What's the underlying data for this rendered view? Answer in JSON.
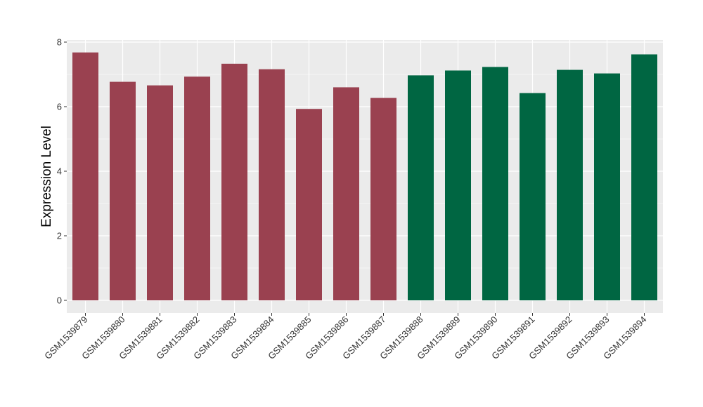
{
  "chart_data": {
    "type": "bar",
    "title": "",
    "xlabel": "",
    "ylabel": "Expression Level",
    "ylim": [
      0,
      8.2
    ],
    "yticks": [
      0,
      2,
      4,
      6,
      8
    ],
    "grid": true,
    "legend": "none",
    "colors": {
      "panel": "#ebebeb",
      "grid": "#ffffff",
      "group_a": "#9a4150",
      "group_b": "#006642"
    },
    "categories": [
      "GSM1539879",
      "GSM1539880",
      "GSM1539881",
      "GSM1539882",
      "GSM1539883",
      "GSM1539884",
      "GSM1539885",
      "GSM1539886",
      "GSM1539887",
      "GSM1539888",
      "GSM1539889",
      "GSM1539890",
      "GSM1539891",
      "GSM1539892",
      "GSM1539893",
      "GSM1539894"
    ],
    "values": [
      7.68,
      6.77,
      6.66,
      6.93,
      7.33,
      7.16,
      5.93,
      6.6,
      6.27,
      6.97,
      7.12,
      7.23,
      6.42,
      7.14,
      7.03,
      7.62
    ],
    "groups": [
      "a",
      "a",
      "a",
      "a",
      "a",
      "a",
      "a",
      "a",
      "a",
      "b",
      "b",
      "b",
      "b",
      "b",
      "b",
      "b"
    ]
  }
}
